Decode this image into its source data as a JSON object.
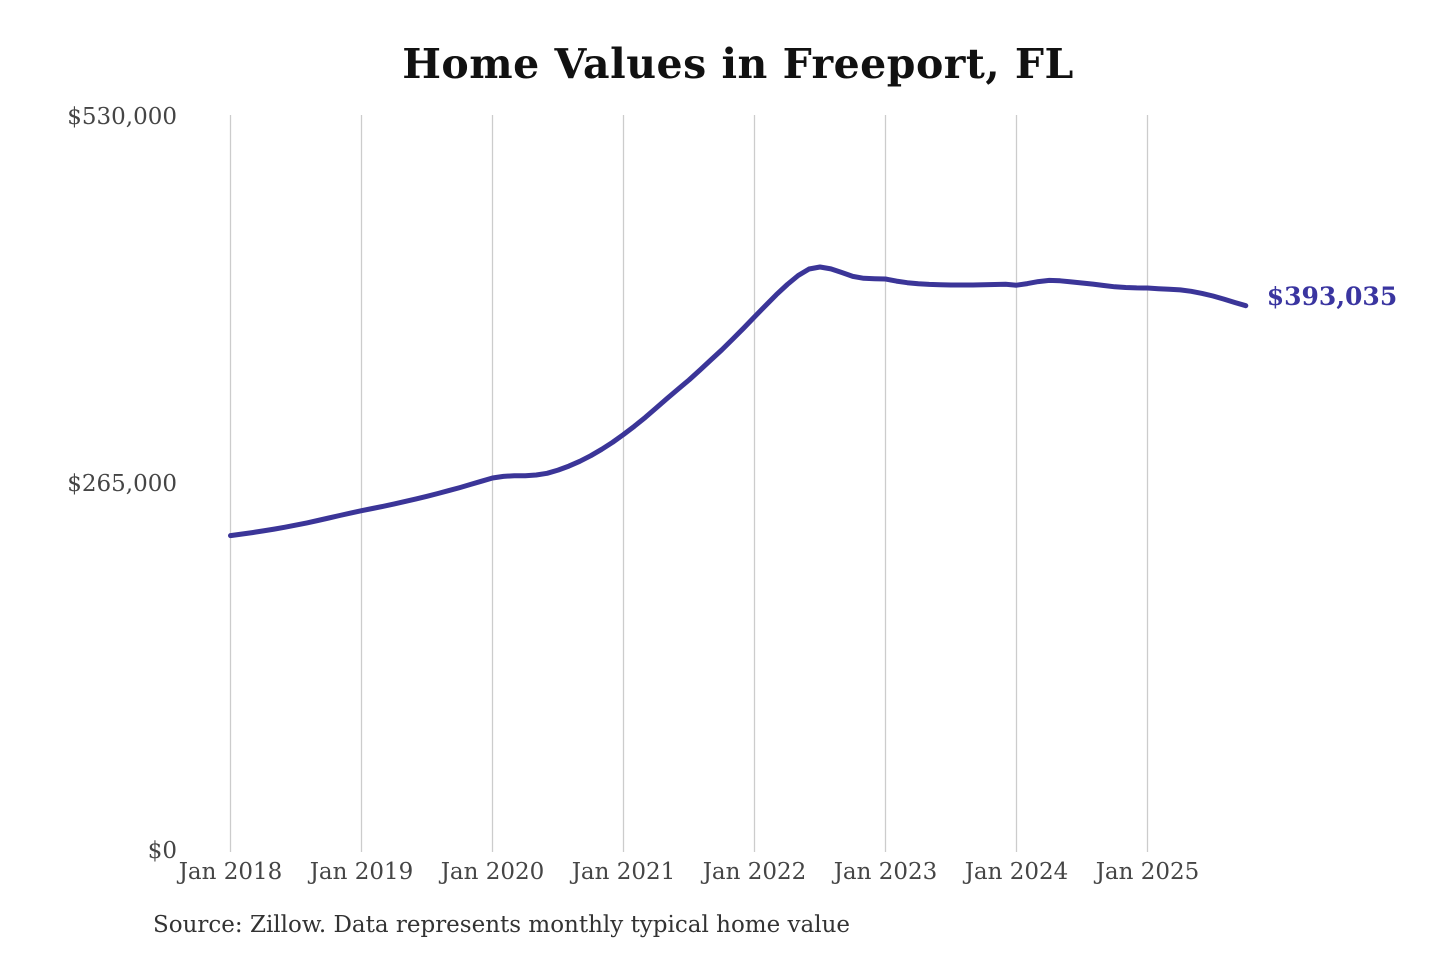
{
  "title": "Home Values in Freeport, FL",
  "end_label": "$393,035",
  "source_note": "Source: Zillow. Data represents monthly typical home value",
  "colors": {
    "line": "#3b3598",
    "end_label": "#3a35a0",
    "grid": "#cccccc",
    "axis_text": "#454545",
    "title_text": "#111111",
    "source_text": "#333333",
    "background": "#ffffff"
  },
  "chart_data": {
    "type": "line",
    "title": "Home Values in Freeport, FL",
    "unit": "USD",
    "grid": "vertical-only",
    "legend": "none",
    "ylim": [
      0,
      530000
    ],
    "y_ticks": [
      {
        "value": 0,
        "label": "$0"
      },
      {
        "value": 265000,
        "label": "$265,000"
      },
      {
        "value": 530000,
        "label": "$530,000"
      }
    ],
    "x_tick_labels": [
      "Jan 2018",
      "Jan 2019",
      "Jan 2020",
      "Jan 2021",
      "Jan 2022",
      "Jan 2023",
      "Jan 2024",
      "Jan 2025"
    ],
    "last_value_label": "$393,035",
    "series": [
      {
        "name": "Typical home value",
        "x_start": "2018-01",
        "x_interval": "month",
        "values": [
          227000,
          228100,
          229200,
          230400,
          231700,
          233100,
          234600,
          236200,
          237900,
          239700,
          241500,
          243300,
          245000,
          246600,
          248200,
          249900,
          251700,
          253500,
          255400,
          257400,
          259500,
          261700,
          264000,
          266300,
          268600,
          269800,
          270300,
          270300,
          270800,
          272000,
          274300,
          277200,
          280700,
          284700,
          289300,
          294400,
          300000,
          306000,
          312400,
          319200,
          326100,
          332800,
          339400,
          346500,
          353800,
          361100,
          368900,
          376800,
          384900,
          393000,
          401000,
          408300,
          414800,
          419500,
          421000,
          419600,
          417000,
          414200,
          412800,
          412500,
          412300,
          410800,
          409600,
          408900,
          408400,
          408100,
          408000,
          408000,
          408000,
          408100,
          408300,
          408500,
          407800,
          409000,
          410400,
          411300,
          411000,
          410200,
          409400,
          408600,
          407600,
          406700,
          406200,
          405900,
          405800,
          405300,
          404900,
          404400,
          403400,
          401900,
          400000,
          397800,
          395300,
          393035
        ]
      }
    ]
  }
}
